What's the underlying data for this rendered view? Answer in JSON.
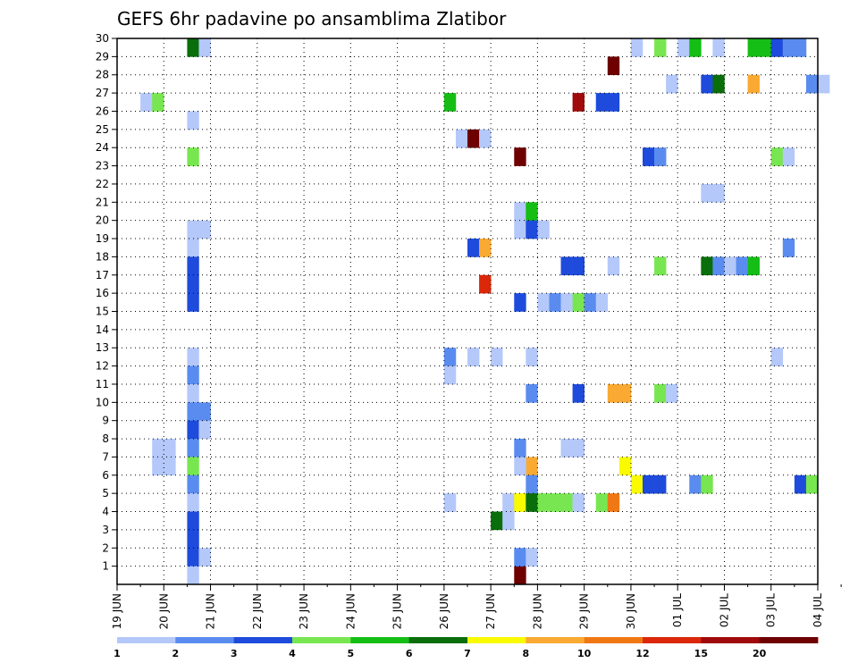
{
  "chart_data": {
    "type": "heatmap",
    "title": "GEFS 6hr padavine po ansamblima Zlatibor",
    "y_ticks": [
      "1",
      "2",
      "3",
      "4",
      "5",
      "6",
      "7",
      "8",
      "9",
      "10",
      "11",
      "12",
      "13",
      "14",
      "15",
      "16",
      "17",
      "18",
      "19",
      "20",
      "21",
      "22",
      "23",
      "24",
      "25",
      "26",
      "27",
      "28",
      "29",
      "30"
    ],
    "ylim": [
      0,
      30
    ],
    "x_ticks": [
      "19 JUN",
      "20 JUN",
      "21 JUN",
      "22 JUN",
      "23 JUN",
      "24 JUN",
      "25 JUN",
      "26 JUN",
      "27 JUN",
      "28 JUN",
      "29 JUN",
      "30 JUN",
      "01 JUL",
      "02 JUL",
      "03 JUL",
      "04 JUL"
    ],
    "x_range_days": [
      0,
      15
    ],
    "grid": true,
    "colorbar": {
      "labels": [
        "1",
        "2",
        "3",
        "4",
        "5",
        "6",
        "7",
        "8",
        "10",
        "12",
        "15",
        "20"
      ],
      "colors": [
        "#b4c8fa",
        "#5a8cf0",
        "#1e4bdc",
        "#78e650",
        "#14be14",
        "#0a6e0a",
        "#fafa00",
        "#faaa32",
        "#f07814",
        "#dc280a",
        "#a00a0a",
        "#6e0000"
      ]
    },
    "cells": [
      [
        1.5,
        29,
        5
      ],
      [
        1.75,
        29,
        0
      ],
      [
        0.5,
        26,
        0
      ],
      [
        0.75,
        26,
        3
      ],
      [
        1.5,
        25,
        0
      ],
      [
        1.5,
        23,
        3
      ],
      [
        1.5,
        19,
        0
      ],
      [
        1.75,
        19,
        0
      ],
      [
        1.5,
        18,
        0
      ],
      [
        1.5,
        17,
        2
      ],
      [
        1.5,
        16,
        2
      ],
      [
        1.5,
        15,
        2
      ],
      [
        1.5,
        12,
        0
      ],
      [
        1.5,
        11,
        1
      ],
      [
        1.5,
        10,
        0
      ],
      [
        1.5,
        9,
        1
      ],
      [
        1.75,
        9,
        1
      ],
      [
        1.5,
        8,
        2
      ],
      [
        1.75,
        8,
        0
      ],
      [
        1.5,
        7,
        1
      ],
      [
        0.75,
        7,
        0
      ],
      [
        1.0,
        7,
        0
      ],
      [
        0.75,
        6,
        0
      ],
      [
        1.0,
        6,
        0
      ],
      [
        1.5,
        6,
        3
      ],
      [
        1.5,
        5,
        1
      ],
      [
        1.5,
        4,
        0
      ],
      [
        1.5,
        3,
        2
      ],
      [
        1.5,
        2,
        2
      ],
      [
        1.5,
        1,
        2
      ],
      [
        1.75,
        1,
        0
      ],
      [
        1.5,
        0,
        0
      ],
      [
        7.0,
        26,
        4
      ],
      [
        7.25,
        24,
        0
      ],
      [
        7.5,
        24,
        11
      ],
      [
        7.75,
        24,
        0
      ],
      [
        8.5,
        23,
        11
      ],
      [
        8.5,
        20,
        0
      ],
      [
        8.75,
        20,
        4
      ],
      [
        8.5,
        19,
        0
      ],
      [
        8.75,
        19,
        2
      ],
      [
        9.0,
        19,
        0
      ],
      [
        7.5,
        18,
        2
      ],
      [
        7.75,
        18,
        7
      ],
      [
        7.75,
        16,
        9
      ],
      [
        8.5,
        15,
        2
      ],
      [
        9.0,
        15,
        0
      ],
      [
        9.25,
        15,
        1
      ],
      [
        9.5,
        15,
        0
      ],
      [
        9.75,
        15,
        3
      ],
      [
        10.0,
        15,
        1
      ],
      [
        10.25,
        15,
        0
      ],
      [
        9.5,
        17,
        2
      ],
      [
        9.75,
        17,
        2
      ],
      [
        10.5,
        17,
        0
      ],
      [
        7.0,
        12,
        1
      ],
      [
        7.0,
        11,
        0
      ],
      [
        7.5,
        12,
        0
      ],
      [
        8.0,
        12,
        0
      ],
      [
        8.75,
        12,
        0
      ],
      [
        8.75,
        10,
        1
      ],
      [
        9.75,
        10,
        2
      ],
      [
        10.5,
        10,
        7
      ],
      [
        10.75,
        10,
        7
      ],
      [
        8.75,
        6,
        7
      ],
      [
        8.5,
        7,
        1
      ],
      [
        8.5,
        6,
        0
      ],
      [
        9.5,
        7,
        0
      ],
      [
        9.75,
        7,
        0
      ],
      [
        8.75,
        5,
        1
      ],
      [
        7.0,
        4,
        0
      ],
      [
        8.25,
        4,
        0
      ],
      [
        8.5,
        4,
        6
      ],
      [
        8.75,
        4,
        5
      ],
      [
        9.0,
        4,
        3
      ],
      [
        9.25,
        4,
        3
      ],
      [
        9.5,
        4,
        3
      ],
      [
        9.75,
        4,
        0
      ],
      [
        10.25,
        4,
        3
      ],
      [
        10.5,
        4,
        8
      ],
      [
        8.0,
        3,
        5
      ],
      [
        8.25,
        3,
        0
      ],
      [
        8.5,
        0,
        11
      ],
      [
        8.5,
        1,
        1
      ],
      [
        8.75,
        1,
        0
      ],
      [
        9.75,
        26,
        10
      ],
      [
        10.25,
        26,
        2
      ],
      [
        10.5,
        26,
        2
      ],
      [
        10.5,
        28,
        11
      ],
      [
        11.0,
        29,
        0
      ],
      [
        11.5,
        29,
        3
      ],
      [
        12.0,
        29,
        0
      ],
      [
        12.25,
        29,
        4
      ],
      [
        12.75,
        29,
        0
      ],
      [
        13.5,
        29,
        4
      ],
      [
        13.75,
        29,
        4
      ],
      [
        14.0,
        29,
        2
      ],
      [
        14.25,
        29,
        1
      ],
      [
        14.5,
        29,
        1
      ],
      [
        11.75,
        27,
        0
      ],
      [
        12.5,
        27,
        2
      ],
      [
        12.75,
        27,
        5
      ],
      [
        13.5,
        27,
        7
      ],
      [
        14.75,
        27,
        1
      ],
      [
        15.0,
        27,
        0
      ],
      [
        11.25,
        23,
        2
      ],
      [
        11.5,
        23,
        1
      ],
      [
        14.0,
        23,
        3
      ],
      [
        14.25,
        23,
        0
      ],
      [
        12.5,
        21,
        0
      ],
      [
        12.75,
        21,
        0
      ],
      [
        14.25,
        18,
        1
      ],
      [
        11.5,
        17,
        3
      ],
      [
        12.5,
        17,
        5
      ],
      [
        12.75,
        17,
        1
      ],
      [
        13.0,
        17,
        0
      ],
      [
        13.25,
        17,
        1
      ],
      [
        13.5,
        17,
        4
      ],
      [
        14.0,
        12,
        0
      ],
      [
        11.5,
        10,
        3
      ],
      [
        11.75,
        10,
        0
      ],
      [
        10.75,
        6,
        6
      ],
      [
        11.0,
        5,
        6
      ],
      [
        11.25,
        5,
        2
      ],
      [
        11.5,
        5,
        2
      ],
      [
        12.25,
        5,
        1
      ],
      [
        12.5,
        5,
        3
      ],
      [
        14.5,
        5,
        2
      ],
      [
        14.75,
        5,
        3
      ]
    ]
  }
}
